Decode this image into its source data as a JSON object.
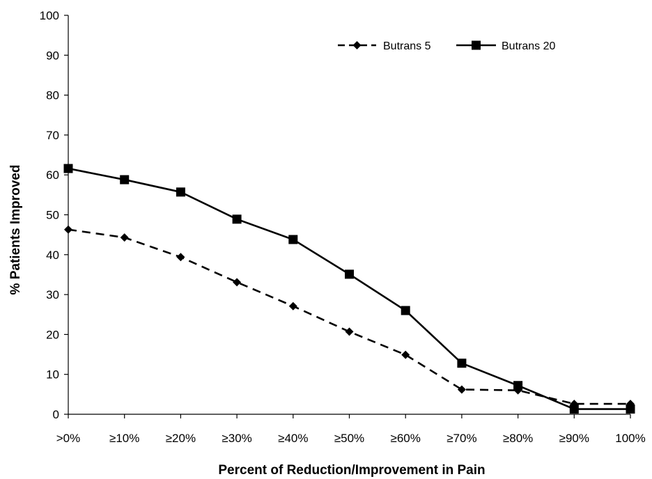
{
  "chart_data": {
    "type": "line",
    "title": "",
    "xlabel": "Percent of Reduction/Improvement in Pain",
    "ylabel": "% Patients Improved",
    "ylim": [
      0,
      100
    ],
    "yticks": [
      0,
      10,
      20,
      30,
      40,
      50,
      60,
      70,
      80,
      90,
      100
    ],
    "grid": false,
    "legend_position": "top-right",
    "categories": [
      ">0%",
      "≥10%",
      "≥20%",
      "≥30%",
      "≥40%",
      "≥50%",
      "≥60%",
      "≥70%",
      "≥80%",
      "≥90%",
      "100%"
    ],
    "series": [
      {
        "name": "Butrans 5",
        "line_style": "dashed",
        "marker": "diamond",
        "color": "#000000",
        "values": [
          46.3,
          44.3,
          39.4,
          33.1,
          27.1,
          20.7,
          14.9,
          6.2,
          6.0,
          2.6,
          2.6
        ]
      },
      {
        "name": "Butrans 20",
        "line_style": "solid",
        "marker": "square",
        "color": "#000000",
        "values": [
          61.6,
          58.8,
          55.7,
          48.9,
          43.8,
          35.1,
          26.0,
          12.8,
          7.2,
          1.3,
          1.3
        ]
      }
    ]
  }
}
